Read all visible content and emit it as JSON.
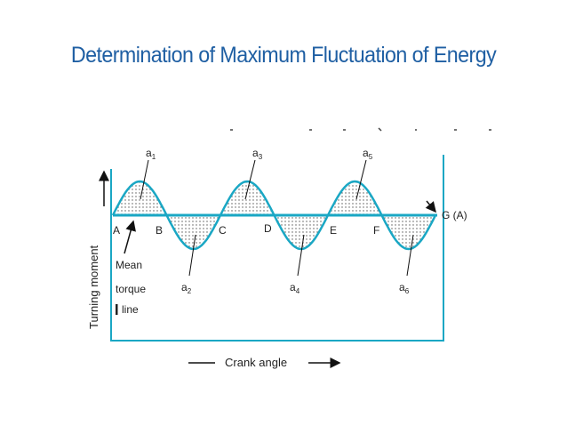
{
  "title": "Determination of Maximum Fluctuation of Energy",
  "diagram": {
    "y_axis_label": "Turning moment",
    "x_axis_label": "Crank angle",
    "mean_line_label": [
      "Mean",
      "torque",
      "line"
    ],
    "end_label": "G (A)",
    "points": [
      "A",
      "B",
      "C",
      "D",
      "E",
      "F"
    ],
    "areas_above": [
      {
        "letter": "a",
        "sub": "1"
      },
      {
        "letter": "a",
        "sub": "3"
      },
      {
        "letter": "a",
        "sub": "5"
      }
    ],
    "areas_below": [
      {
        "letter": "a",
        "sub": "2"
      },
      {
        "letter": "a",
        "sub": "4"
      },
      {
        "letter": "a",
        "sub": "6"
      }
    ],
    "colors": {
      "curve": "#1aa7c4",
      "title": "#1f5fa3",
      "dots": "#555555"
    }
  }
}
